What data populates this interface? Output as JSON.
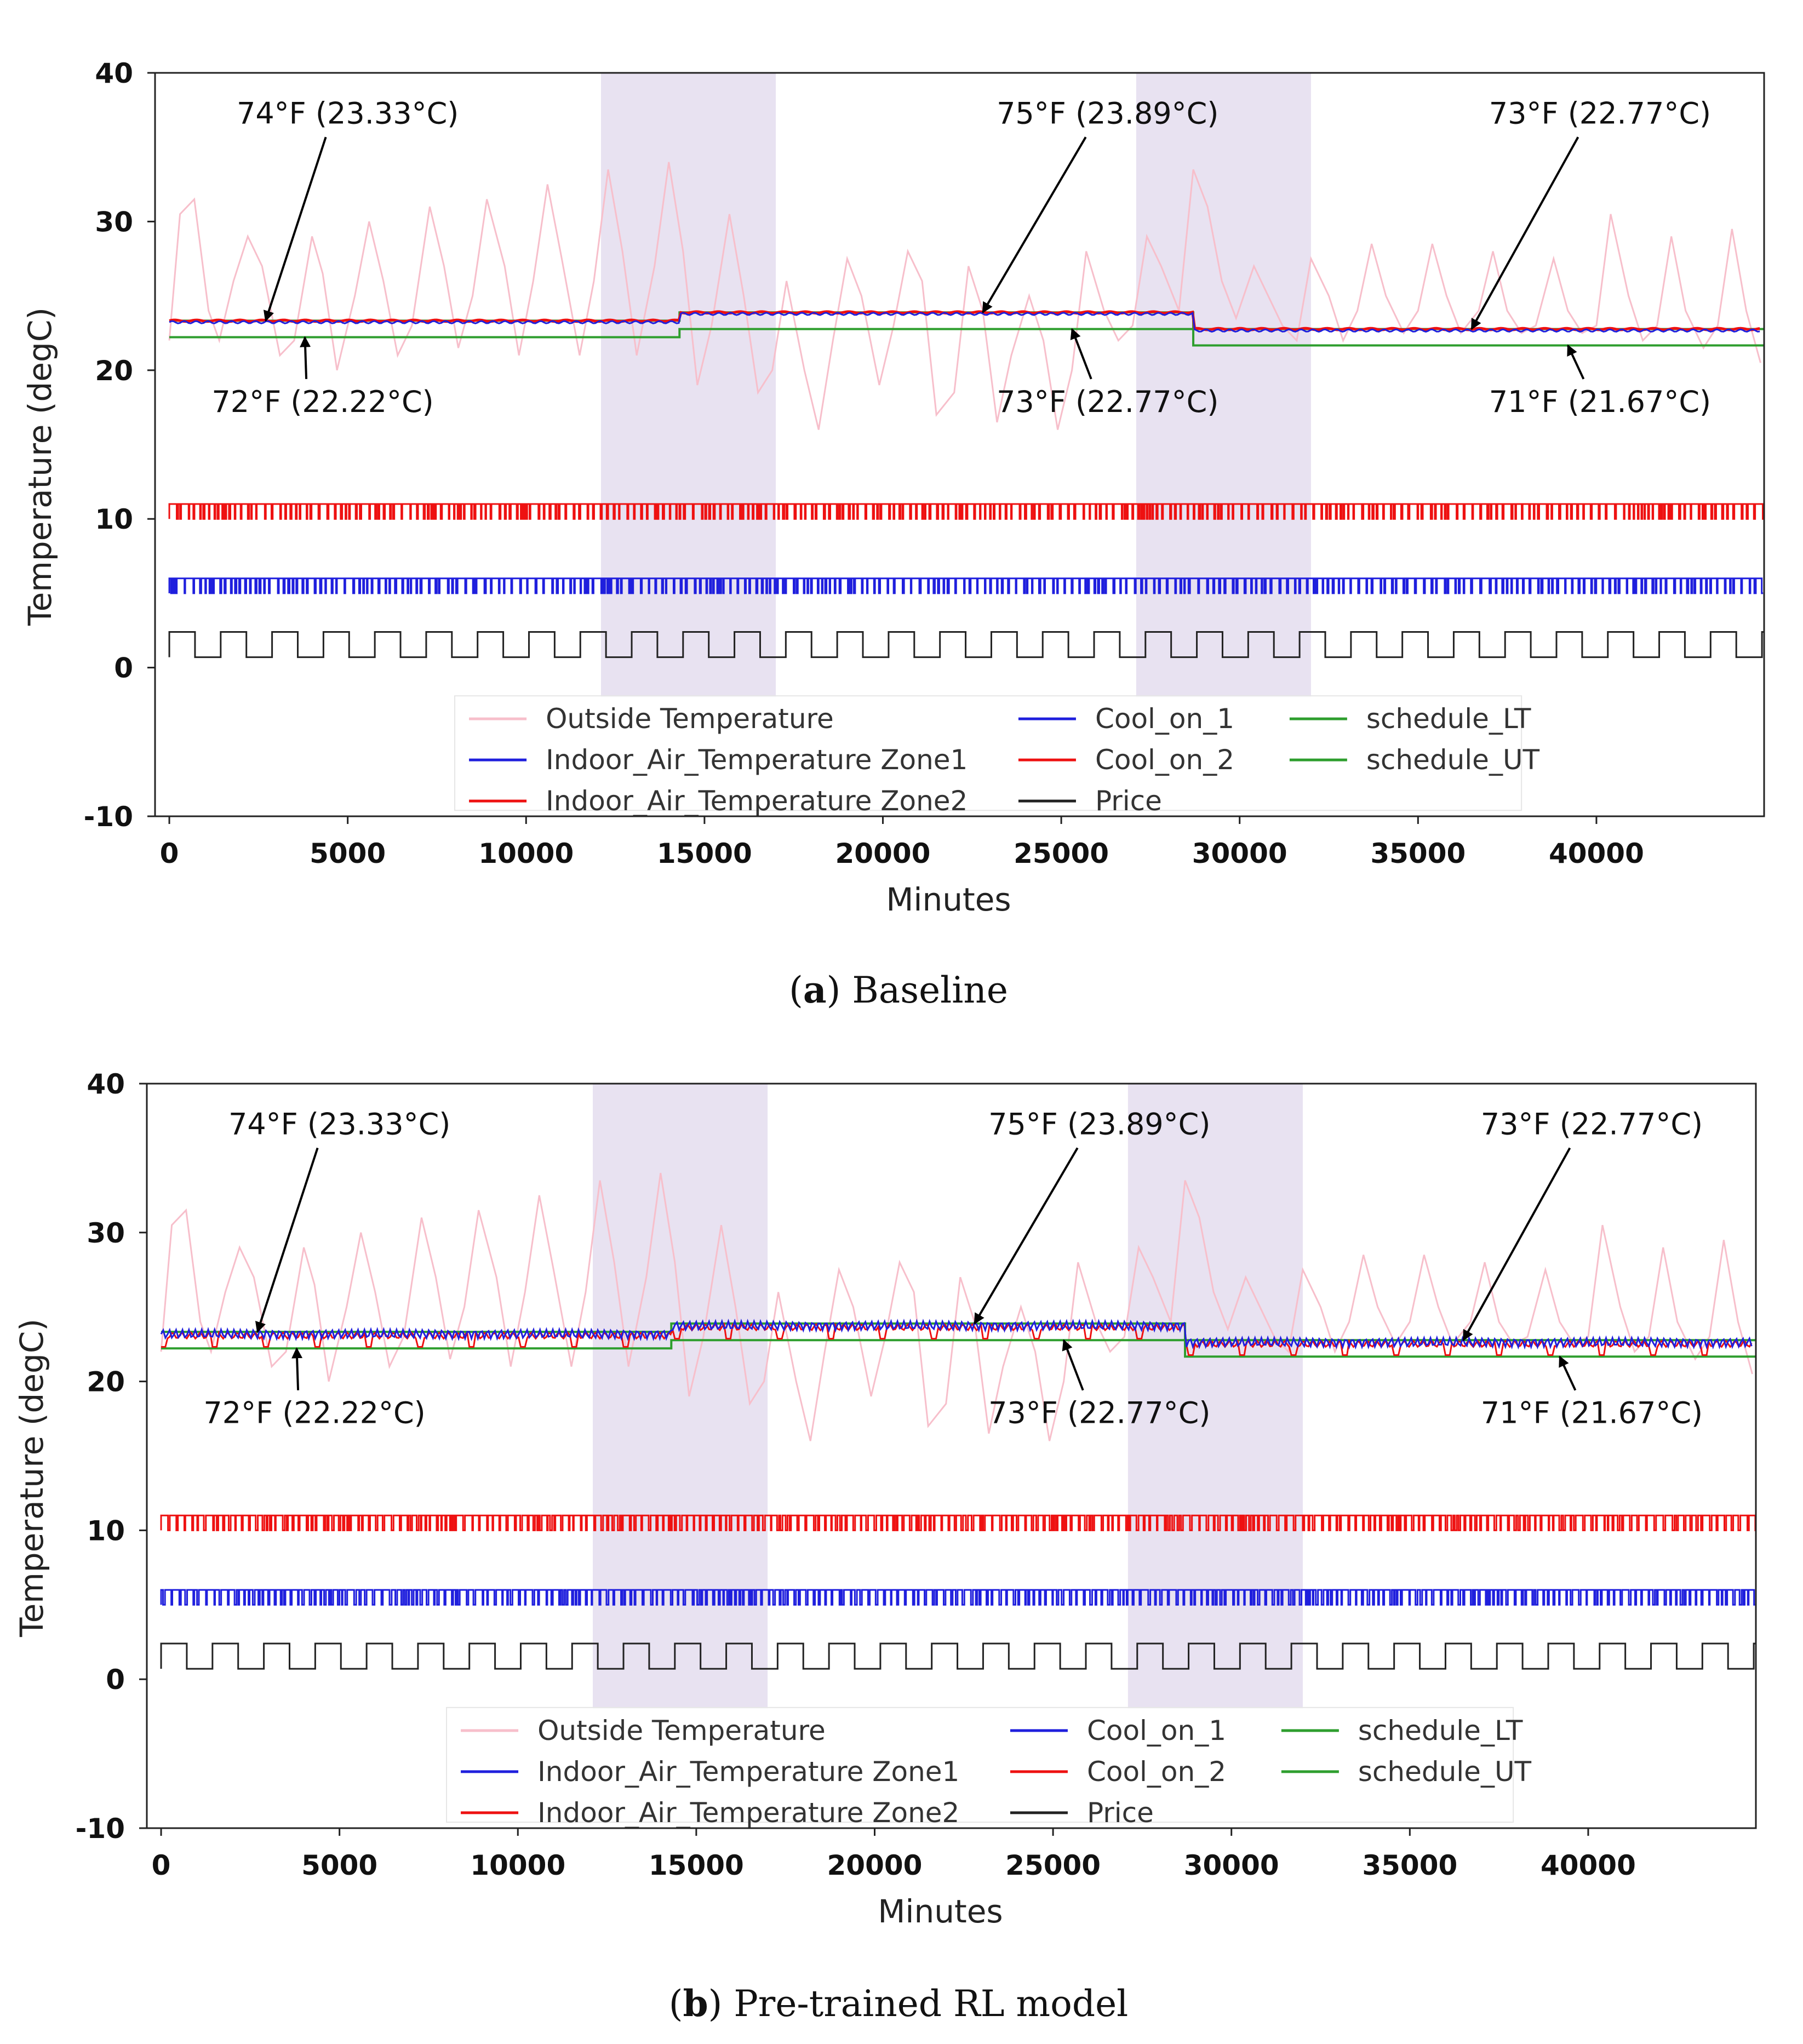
{
  "chart_data": [
    {
      "type": "line",
      "caption_letter": "a",
      "caption_text": "Baseline",
      "xlabel": "Minutes",
      "ylabel": "Temperature (degC)",
      "xlim": [
        -400,
        44700
      ],
      "ylim": [
        -10,
        40
      ],
      "xticks": [
        0,
        5000,
        10000,
        15000,
        20000,
        25000,
        30000,
        35000,
        40000
      ],
      "yticks": [
        -10,
        0,
        10,
        20,
        30,
        40
      ],
      "grid": false,
      "shaded_regions": [
        [
          12100,
          17000
        ],
        [
          27100,
          32000
        ]
      ],
      "schedule_LT": [
        [
          0,
          14300,
          22.22
        ],
        [
          14300,
          28700,
          22.77
        ],
        [
          28700,
          44700,
          21.67
        ]
      ],
      "schedule_UT": [
        [
          0,
          14300,
          23.33
        ],
        [
          14300,
          28700,
          23.89
        ],
        [
          28700,
          44700,
          22.77
        ]
      ],
      "indoor_mode": "flat",
      "cool_on_1_level": [
        5,
        6
      ],
      "cool_on_2_level": [
        10,
        11
      ],
      "price_level": [
        0.7,
        2.4
      ],
      "annotations": [
        {
          "text": "74°F (23.33°C)",
          "point": [
            2700,
            23.33
          ],
          "text_at": [
            5000,
            36.6
          ],
          "pos": "above"
        },
        {
          "text": "72°F (22.22°C)",
          "point": [
            3800,
            22.22
          ],
          "text_at": [
            4300,
            17.2
          ],
          "pos": "below"
        },
        {
          "text": "75°F (23.89°C)",
          "point": [
            22800,
            23.89
          ],
          "text_at": [
            26300,
            36.6
          ],
          "pos": "above"
        },
        {
          "text": "73°F (22.77°C)",
          "point": [
            25300,
            22.77
          ],
          "text_at": [
            26300,
            17.2
          ],
          "pos": "below"
        },
        {
          "text": "73°F (22.77°C)",
          "point": [
            36500,
            22.77
          ],
          "text_at": [
            40100,
            36.6
          ],
          "pos": "above"
        },
        {
          "text": "71°F (21.67°C)",
          "point": [
            39200,
            21.67
          ],
          "text_at": [
            40100,
            17.2
          ],
          "pos": "below"
        }
      ],
      "legend_position": "bottom-center",
      "series": [
        {
          "name": "Outside Temperature",
          "color": "#f7bfcb"
        },
        {
          "name": "Indoor_Air_Temperature Zone1",
          "color": "#1f1fdd"
        },
        {
          "name": "Indoor_Air_Temperature Zone2",
          "color": "#ee1111"
        },
        {
          "name": "Cool_on_1",
          "color": "#1f1fdd"
        },
        {
          "name": "Cool_on_2",
          "color": "#ee1111"
        },
        {
          "name": "Price",
          "color": "#222222"
        },
        {
          "name": "schedule_LT",
          "color": "#2e9e2e"
        },
        {
          "name": "schedule_UT",
          "color": "#2e9e2e"
        }
      ]
    },
    {
      "type": "line",
      "caption_letter": "b",
      "caption_text": "Pre-trained RL model",
      "xlabel": "Minutes",
      "ylabel": "Temperature (degC)",
      "xlim": [
        -400,
        44700
      ],
      "ylim": [
        -10,
        40
      ],
      "xticks": [
        0,
        5000,
        10000,
        15000,
        20000,
        25000,
        30000,
        35000,
        40000
      ],
      "yticks": [
        -10,
        0,
        10,
        20,
        30,
        40
      ],
      "grid": false,
      "shaded_regions": [
        [
          12100,
          17000
        ],
        [
          27100,
          32000
        ]
      ],
      "schedule_LT": [
        [
          0,
          14300,
          22.22
        ],
        [
          14300,
          28700,
          22.77
        ],
        [
          28700,
          44700,
          21.67
        ]
      ],
      "schedule_UT": [
        [
          0,
          14300,
          23.33
        ],
        [
          14300,
          28700,
          23.89
        ],
        [
          28700,
          44700,
          22.77
        ]
      ],
      "indoor_mode": "oscillating",
      "cool_on_1_level": [
        5,
        6
      ],
      "cool_on_2_level": [
        10,
        11
      ],
      "price_level": [
        0.7,
        2.4
      ],
      "annotations": [
        {
          "text": "74°F (23.33°C)",
          "point": [
            2700,
            23.33
          ],
          "text_at": [
            5000,
            36.6
          ],
          "pos": "above"
        },
        {
          "text": "72°F (22.22°C)",
          "point": [
            3800,
            22.22
          ],
          "text_at": [
            4300,
            17.2
          ],
          "pos": "below"
        },
        {
          "text": "75°F (23.89°C)",
          "point": [
            22800,
            23.89
          ],
          "text_at": [
            26300,
            36.6
          ],
          "pos": "above"
        },
        {
          "text": "73°F (22.77°C)",
          "point": [
            25300,
            22.77
          ],
          "text_at": [
            26300,
            17.2
          ],
          "pos": "below"
        },
        {
          "text": "73°F (22.77°C)",
          "point": [
            36500,
            22.77
          ],
          "text_at": [
            40100,
            36.6
          ],
          "pos": "above"
        },
        {
          "text": "71°F (21.67°C)",
          "point": [
            39200,
            21.67
          ],
          "text_at": [
            40100,
            17.2
          ],
          "pos": "below"
        }
      ],
      "legend_position": "bottom-center",
      "series": [
        {
          "name": "Outside Temperature",
          "color": "#f7bfcb"
        },
        {
          "name": "Indoor_Air_Temperature Zone1",
          "color": "#1f1fdd"
        },
        {
          "name": "Indoor_Air_Temperature Zone2",
          "color": "#ee1111"
        },
        {
          "name": "Cool_on_1",
          "color": "#1f1fdd"
        },
        {
          "name": "Cool_on_2",
          "color": "#ee1111"
        },
        {
          "name": "Price",
          "color": "#222222"
        },
        {
          "name": "schedule_LT",
          "color": "#2e9e2e"
        },
        {
          "name": "schedule_UT",
          "color": "#2e9e2e"
        }
      ]
    }
  ],
  "outside_temperature": {
    "x": [
      0,
      300,
      700,
      1100,
      1400,
      1800,
      2200,
      2600,
      3100,
      3500,
      4000,
      4300,
      4700,
      5200,
      5600,
      6000,
      6400,
      6800,
      7300,
      7700,
      8100,
      8500,
      8900,
      9400,
      9800,
      10200,
      10600,
      11000,
      11500,
      11900,
      12300,
      12700,
      13100,
      13600,
      14000,
      14400,
      14800,
      15200,
      15700,
      16100,
      16500,
      16900,
      17300,
      17800,
      18200,
      18600,
      19000,
      19400,
      19900,
      20300,
      20700,
      21100,
      21500,
      22000,
      22400,
      22800,
      23200,
      23600,
      24100,
      24500,
      24900,
      25300,
      25700,
      26200,
      26600,
      27000,
      27400,
      27800,
      28300,
      28700,
      29100,
      29500,
      29900,
      30400,
      30800,
      31200,
      31600,
      32000,
      32500,
      32900,
      33300,
      33700,
      34100,
      34600,
      35000,
      35400,
      35800,
      36200,
      36700,
      37100,
      37500,
      37900,
      38300,
      38800,
      39200,
      39600,
      40000,
      40400,
      40900,
      41300,
      41700,
      42100,
      42500,
      43000,
      43400,
      43800,
      44200,
      44600
    ],
    "y": [
      22,
      30.5,
      31.5,
      24,
      22,
      26,
      29,
      27,
      21,
      22,
      29,
      26.5,
      20,
      25,
      30,
      26,
      21,
      23,
      31,
      27,
      21.5,
      25,
      31.5,
      27,
      21,
      26,
      32.5,
      27.5,
      21,
      26,
      33.5,
      28,
      21,
      27,
      34,
      28,
      19,
      23,
      30.5,
      25,
      18.5,
      20,
      26,
      20,
      16,
      22,
      27.5,
      25,
      19,
      23,
      28,
      26,
      17,
      18.5,
      27,
      24,
      16.5,
      21,
      25,
      22,
      16,
      20,
      28,
      24,
      22,
      23,
      29,
      27,
      24,
      33.5,
      31,
      26,
      23.5,
      27,
      25,
      23,
      22,
      27.5,
      25,
      22,
      24,
      28.5,
      25,
      22.5,
      24,
      28.5,
      25,
      22.5,
      24,
      28,
      24,
      22.5,
      23,
      27.5,
      24,
      22.5,
      23,
      30.5,
      25,
      22,
      23,
      29,
      24,
      21.5,
      23,
      29.5,
      24,
      20.5
    ]
  },
  "price": {
    "period_minutes": 1440,
    "peak_fraction": 0.5
  },
  "cool_on_1": {
    "on_fraction_baseline": 0.85,
    "on_fraction_rl": 0.75
  },
  "cool_on_2": {
    "on_fraction_baseline": 0.85,
    "on_fraction_rl": 0.75
  }
}
